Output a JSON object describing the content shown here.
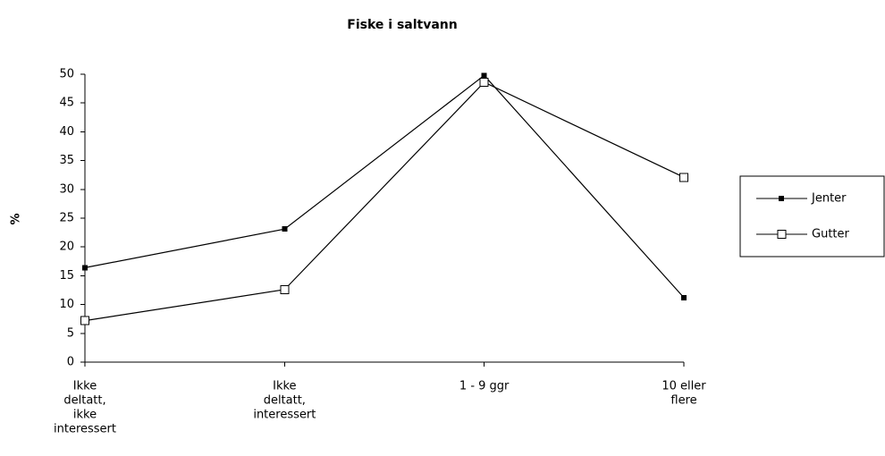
{
  "chart_data": {
    "type": "line",
    "title": "Fiske i saltvann",
    "y_label": "%",
    "categories": [
      [
        "Ikke",
        "deltatt,",
        "ikke",
        "interessert"
      ],
      [
        "Ikke",
        "deltatt,",
        "interessert"
      ],
      [
        "1 - 9 ggr"
      ],
      [
        "10 eller",
        "flere"
      ]
    ],
    "series": [
      {
        "name": "Jenter",
        "color": "#000000",
        "marker": "filled-square",
        "values": [
          16.4,
          23.1,
          49.8,
          11.2
        ]
      },
      {
        "name": "Gutter",
        "color": "#000000",
        "marker": "open-square",
        "values": [
          7.2,
          12.6,
          48.6,
          32.1
        ]
      }
    ],
    "ylim": [
      0,
      50
    ],
    "yticks": [
      0,
      5,
      10,
      15,
      20,
      25,
      30,
      35,
      40,
      45,
      50
    ],
    "grid": false,
    "legend": "right"
  }
}
